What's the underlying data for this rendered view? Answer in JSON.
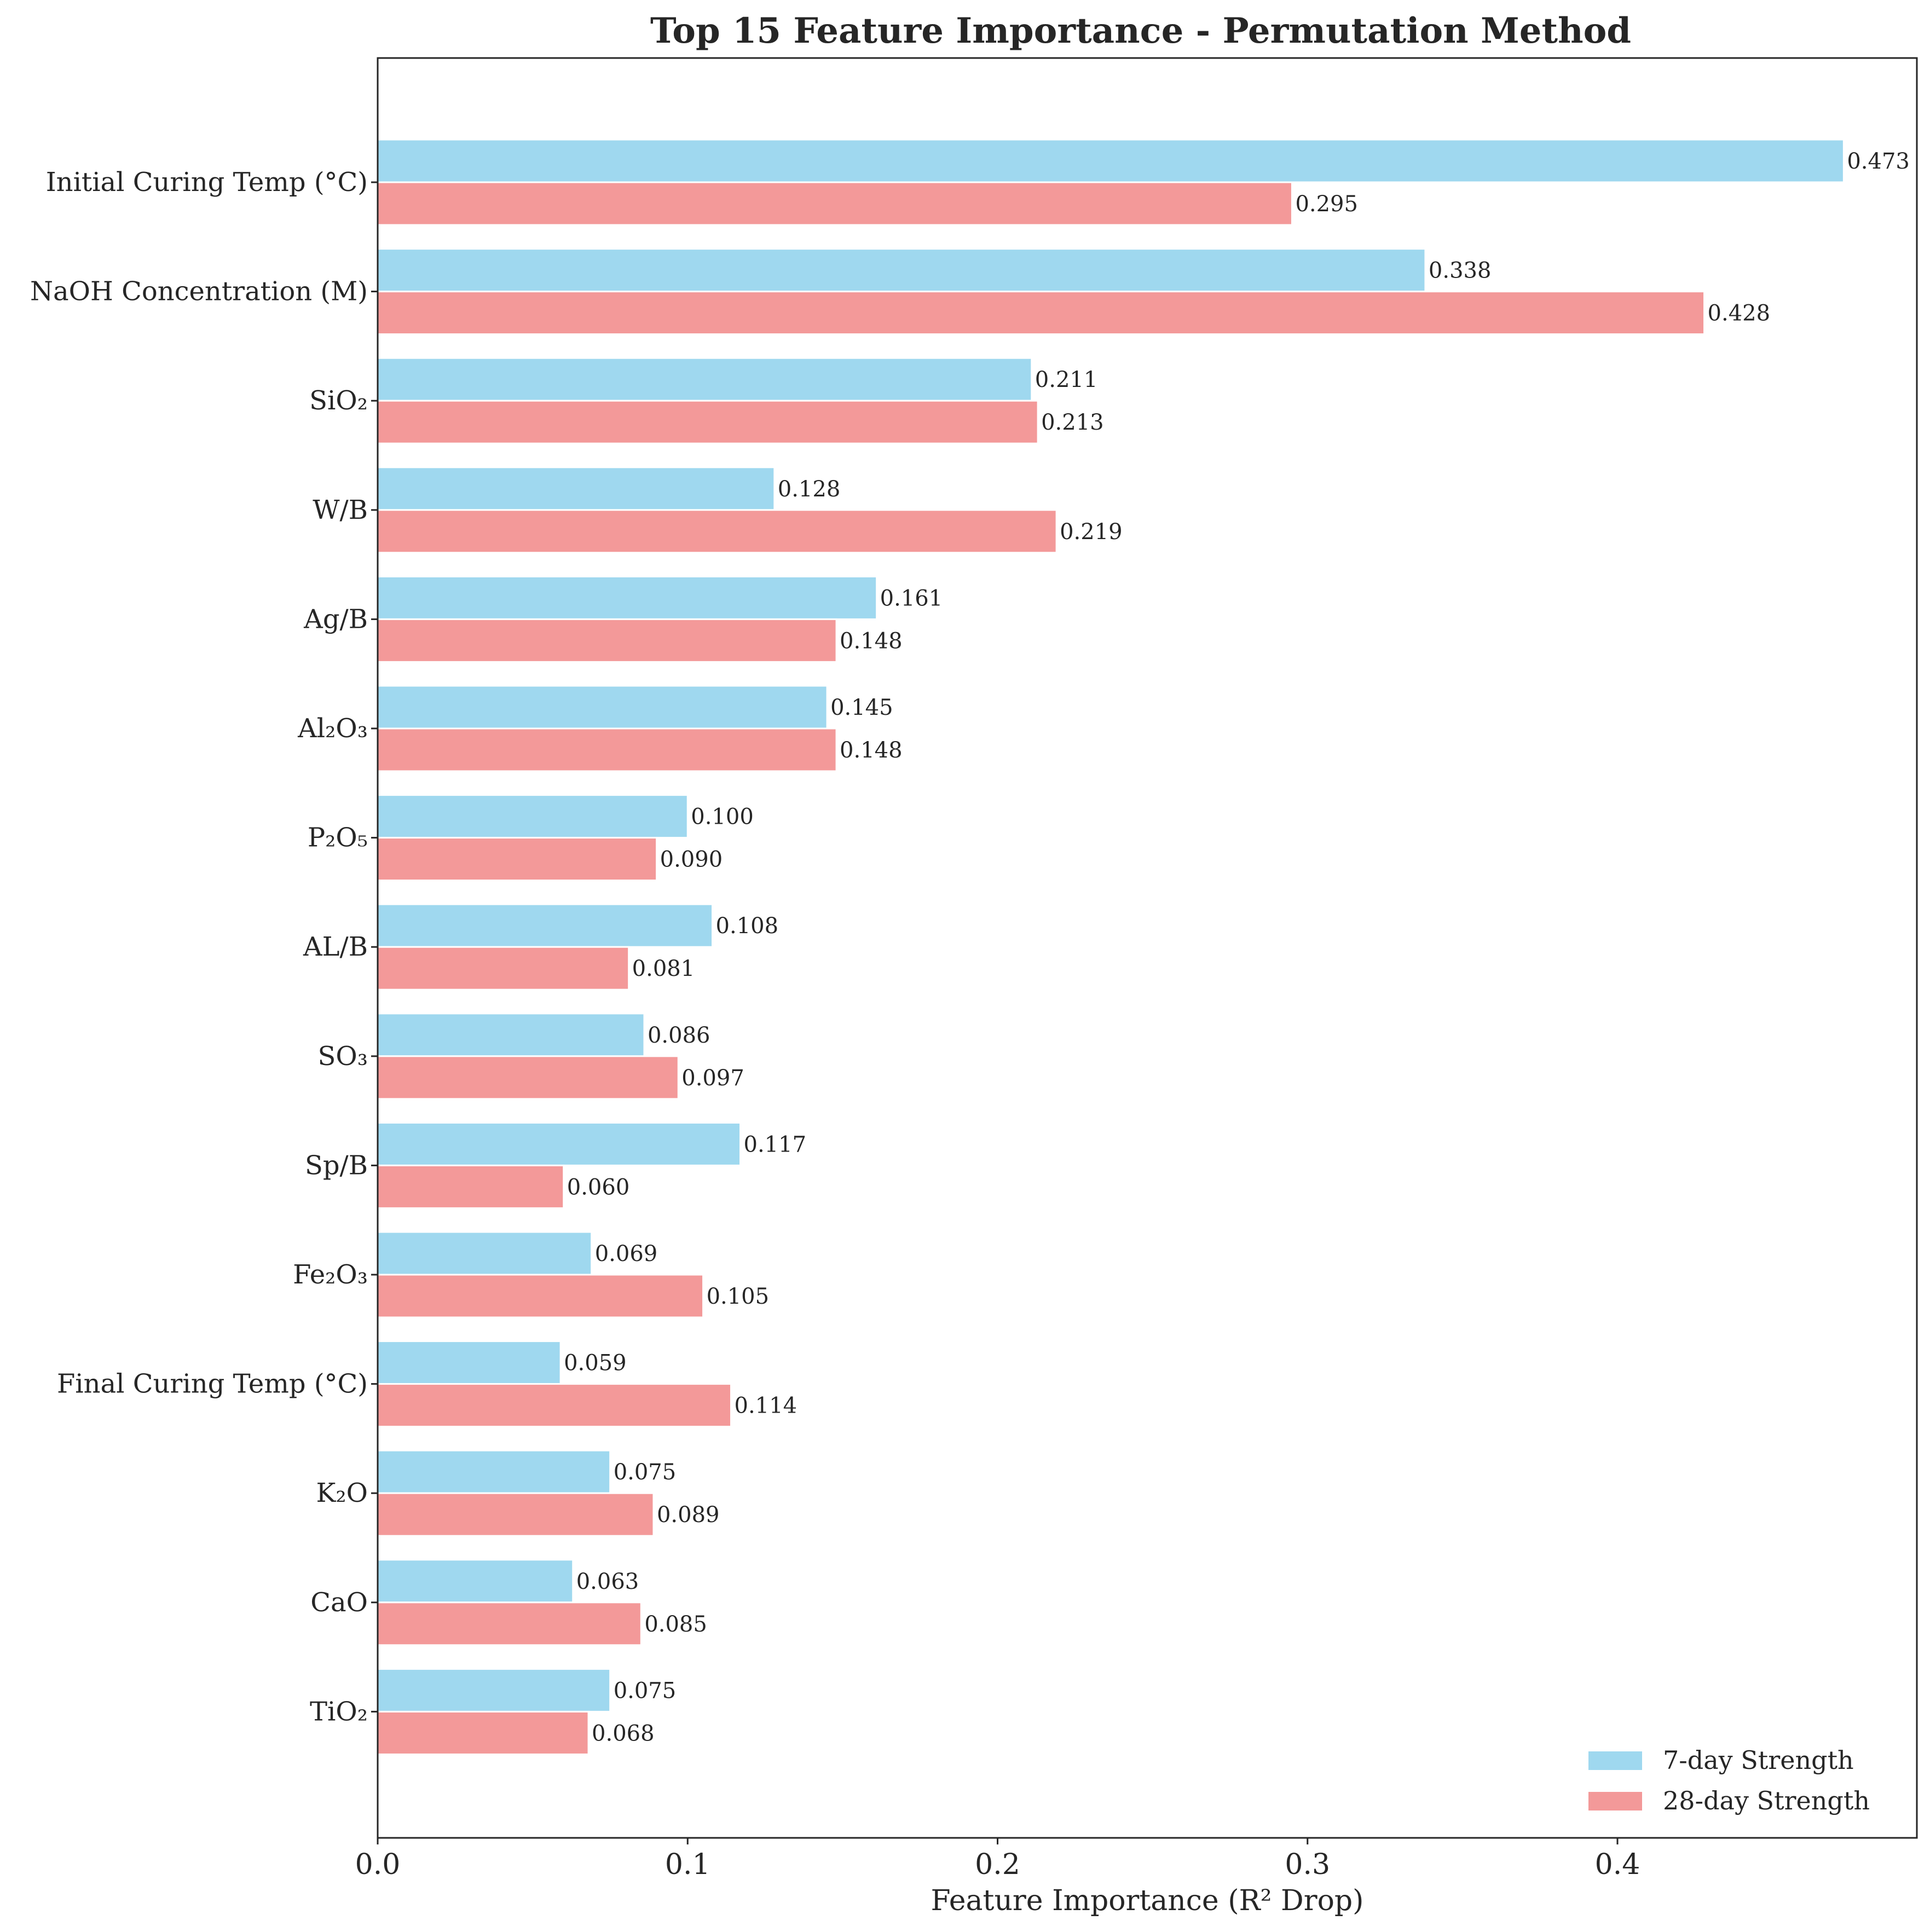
{
  "chart_data": {
    "type": "bar",
    "orientation": "horizontal",
    "title": "Top 15 Feature Importance - Permutation Method",
    "xlabel": "Feature Importance (R² Drop)",
    "ylabel": "",
    "xlim": [
      0,
      0.4966
    ],
    "xticks": [
      0.0,
      0.1,
      0.2,
      0.3,
      0.4
    ],
    "xtick_labels": [
      "0.0",
      "0.1",
      "0.2",
      "0.3",
      "0.4"
    ],
    "grid": false,
    "legend_position": "lower-right",
    "categories": [
      "Initial Curing Temp (°C)",
      "NaOH Concentration (M)",
      "SiO₂",
      "W/B",
      "Ag/B",
      "Al₂O₃",
      "P₂O₅",
      "AL/B",
      "SO₃",
      "Sp/B",
      "Fe₂O₃",
      "Final Curing Temp (°C)",
      "K₂O",
      "CaO",
      "TiO₂"
    ],
    "series": [
      {
        "name": "7-day Strength",
        "color": "#87ceeb",
        "values": [
          0.473,
          0.338,
          0.211,
          0.128,
          0.161,
          0.145,
          0.1,
          0.108,
          0.086,
          0.117,
          0.069,
          0.059,
          0.075,
          0.063,
          0.075
        ],
        "labels": [
          "0.473",
          "0.338",
          "0.211",
          "0.128",
          "0.161",
          "0.145",
          "0.100",
          "0.108",
          "0.086",
          "0.117",
          "0.069",
          "0.059",
          "0.075",
          "0.063",
          "0.075"
        ]
      },
      {
        "name": "28-day Strength",
        "color": "#f08080",
        "values": [
          0.295,
          0.428,
          0.213,
          0.219,
          0.148,
          0.148,
          0.09,
          0.081,
          0.097,
          0.06,
          0.105,
          0.114,
          0.089,
          0.085,
          0.068
        ],
        "labels": [
          "0.295",
          "0.428",
          "0.213",
          "0.219",
          "0.148",
          "0.148",
          "0.090",
          "0.081",
          "0.097",
          "0.060",
          "0.105",
          "0.114",
          "0.089",
          "0.085",
          "0.068"
        ]
      }
    ]
  }
}
